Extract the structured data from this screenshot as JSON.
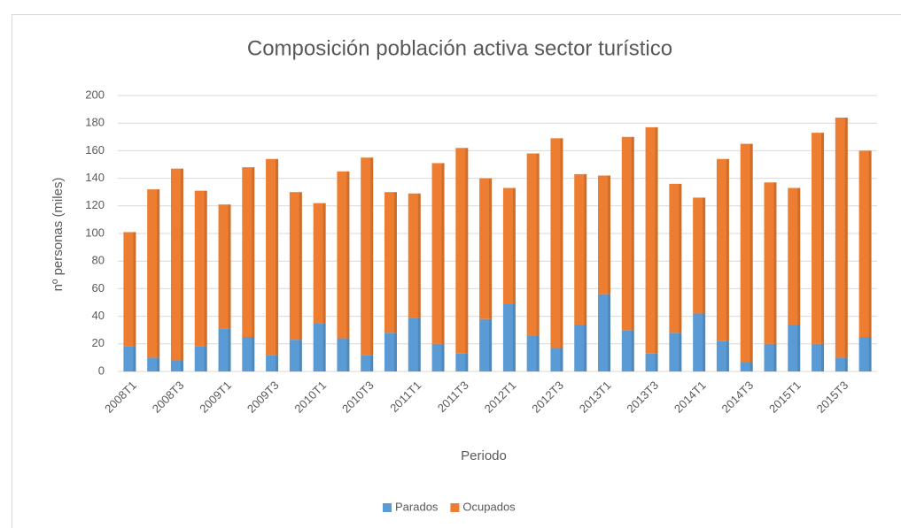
{
  "chart_data": {
    "type": "bar",
    "stacked": true,
    "title": "Composición población activa sector turístico",
    "x_label": "Periodo",
    "y_label": "nº personas (miles)",
    "categories": [
      "2008T1",
      null,
      "2008T3",
      null,
      "2009T1",
      null,
      "2009T3",
      null,
      "2010T1",
      null,
      "2010T3",
      null,
      "2011T1",
      null,
      "2011T3",
      null,
      "2012T1",
      null,
      "2012T3",
      null,
      "2013T1",
      null,
      "2013T3",
      null,
      "2014T1",
      null,
      "2014T3",
      null,
      "2015T1",
      null,
      "2015T3",
      null
    ],
    "series": [
      {
        "name": "Parados",
        "color": "#5b9bd5",
        "values": [
          18,
          10,
          8,
          18,
          31,
          25,
          12,
          23,
          35,
          24,
          12,
          28,
          39,
          20,
          13,
          38,
          49,
          26,
          17,
          34,
          56,
          30,
          13,
          28,
          42,
          22,
          7,
          20,
          34,
          20,
          10,
          25
        ]
      },
      {
        "name": "Ocupados",
        "color": "#ed7d31",
        "values": [
          83,
          122,
          139,
          113,
          90,
          123,
          142,
          107,
          87,
          121,
          143,
          102,
          90,
          131,
          149,
          102,
          84,
          132,
          152,
          109,
          86,
          140,
          164,
          108,
          84,
          132,
          158,
          117,
          99,
          153,
          174,
          135
        ]
      }
    ],
    "ylim": [
      0,
      200
    ],
    "yticks": [
      0,
      20,
      40,
      60,
      80,
      100,
      120,
      140,
      160,
      180,
      200
    ],
    "grid": true,
    "legend": "bottom"
  }
}
